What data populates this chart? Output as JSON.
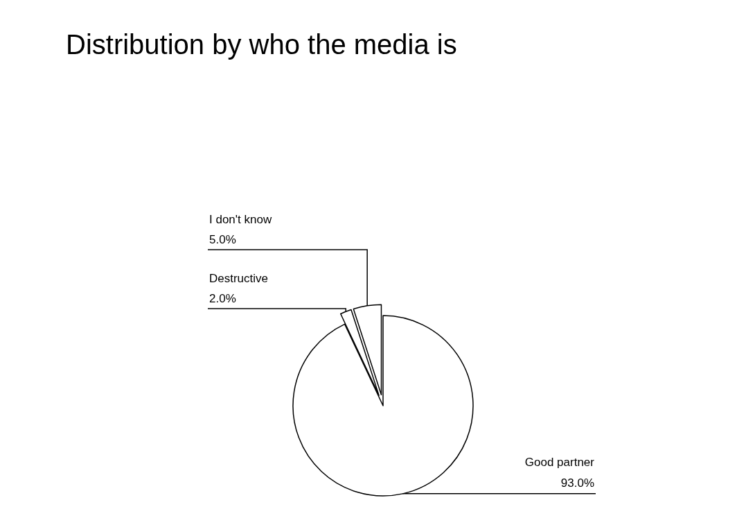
{
  "chart_data": {
    "type": "pie",
    "title": "Distribution by who the media is",
    "categories": [
      "Good partner",
      "Destructive",
      "I don't know"
    ],
    "values": [
      93,
      2,
      5
    ],
    "colors": [
      "#ffffff",
      "#ffffff",
      "#ffffff"
    ],
    "value_labels": [
      "93.0%",
      "2.0%",
      "5.0%"
    ]
  }
}
